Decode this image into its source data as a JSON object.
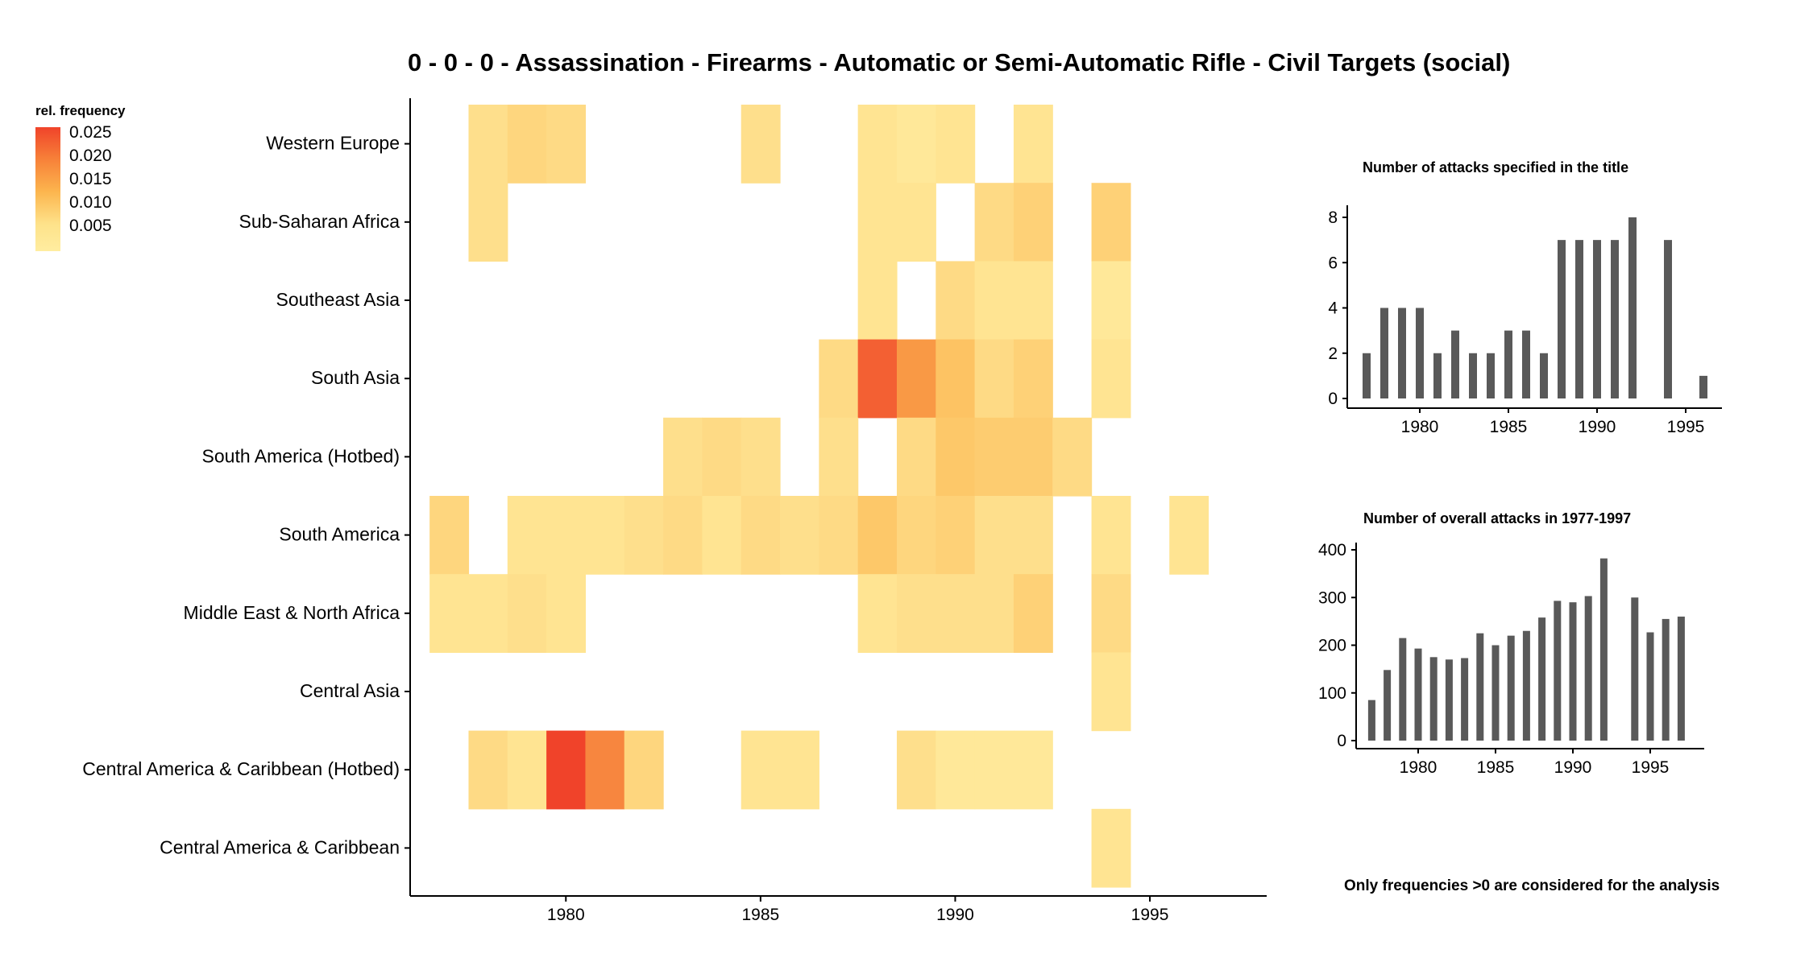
{
  "title": "0 - 0 - 0 - Assassination - Firearms - Automatic or Semi-Automatic Rifle - Civil Targets (social)",
  "legend": {
    "title": "rel. frequency",
    "labels": [
      "0.025",
      "0.020",
      "0.015",
      "0.010",
      "0.005"
    ],
    "colors": {
      "high": "#f0432a",
      "low": "#ffeda0"
    }
  },
  "footnote": "Only frequencies >0 are considered for the analysis",
  "chart_data": [
    {
      "type": "heatmap",
      "title": "0 - 0 - 0 - Assassination - Firearms - Automatic or Semi-Automatic Rifle - Civil Targets (social)",
      "x_ticks": [
        "1980",
        "1985",
        "1990",
        "1995"
      ],
      "xlim": [
        1976,
        1998
      ],
      "y_categories": [
        "Western Europe",
        "Sub-Saharan Africa",
        "Southeast Asia",
        "South Asia",
        "South America (Hotbed)",
        "South America",
        "Middle East & North Africa",
        "Central Asia",
        "Central America & Caribbean (Hotbed)",
        "Central America & Caribbean"
      ],
      "cells": [
        {
          "region": "Western Europe",
          "year": 1978,
          "value": 0.004
        },
        {
          "region": "Western Europe",
          "year": 1979,
          "value": 0.006
        },
        {
          "region": "Western Europe",
          "year": 1980,
          "value": 0.005
        },
        {
          "region": "Western Europe",
          "year": 1985,
          "value": 0.004
        },
        {
          "region": "Western Europe",
          "year": 1988,
          "value": 0.003
        },
        {
          "region": "Western Europe",
          "year": 1989,
          "value": 0.002
        },
        {
          "region": "Western Europe",
          "year": 1990,
          "value": 0.003
        },
        {
          "region": "Western Europe",
          "year": 1992,
          "value": 0.003
        },
        {
          "region": "Sub-Saharan Africa",
          "year": 1978,
          "value": 0.004
        },
        {
          "region": "Sub-Saharan Africa",
          "year": 1988,
          "value": 0.003
        },
        {
          "region": "Sub-Saharan Africa",
          "year": 1989,
          "value": 0.003
        },
        {
          "region": "Sub-Saharan Africa",
          "year": 1991,
          "value": 0.005
        },
        {
          "region": "Sub-Saharan Africa",
          "year": 1992,
          "value": 0.007
        },
        {
          "region": "Sub-Saharan Africa",
          "year": 1994,
          "value": 0.007
        },
        {
          "region": "Southeast Asia",
          "year": 1988,
          "value": 0.003
        },
        {
          "region": "Southeast Asia",
          "year": 1990,
          "value": 0.005
        },
        {
          "region": "Southeast Asia",
          "year": 1991,
          "value": 0.003
        },
        {
          "region": "Southeast Asia",
          "year": 1992,
          "value": 0.003
        },
        {
          "region": "Southeast Asia",
          "year": 1994,
          "value": 0.002
        },
        {
          "region": "South Asia",
          "year": 1987,
          "value": 0.005
        },
        {
          "region": "South Asia",
          "year": 1988,
          "value": 0.022
        },
        {
          "region": "South Asia",
          "year": 1989,
          "value": 0.016
        },
        {
          "region": "South Asia",
          "year": 1990,
          "value": 0.01
        },
        {
          "region": "South Asia",
          "year": 1991,
          "value": 0.005
        },
        {
          "region": "South Asia",
          "year": 1992,
          "value": 0.007
        },
        {
          "region": "South Asia",
          "year": 1994,
          "value": 0.003
        },
        {
          "region": "South America (Hotbed)",
          "year": 1983,
          "value": 0.004
        },
        {
          "region": "South America (Hotbed)",
          "year": 1984,
          "value": 0.005
        },
        {
          "region": "South America (Hotbed)",
          "year": 1985,
          "value": 0.004
        },
        {
          "region": "South America (Hotbed)",
          "year": 1987,
          "value": 0.004
        },
        {
          "region": "South America (Hotbed)",
          "year": 1989,
          "value": 0.005
        },
        {
          "region": "South America (Hotbed)",
          "year": 1990,
          "value": 0.009
        },
        {
          "region": "South America (Hotbed)",
          "year": 1991,
          "value": 0.008
        },
        {
          "region": "South America (Hotbed)",
          "year": 1992,
          "value": 0.008
        },
        {
          "region": "South America (Hotbed)",
          "year": 1993,
          "value": 0.005
        },
        {
          "region": "South America",
          "year": 1977,
          "value": 0.006
        },
        {
          "region": "South America",
          "year": 1979,
          "value": 0.003
        },
        {
          "region": "South America",
          "year": 1980,
          "value": 0.003
        },
        {
          "region": "South America",
          "year": 1981,
          "value": 0.003
        },
        {
          "region": "South America",
          "year": 1982,
          "value": 0.004
        },
        {
          "region": "South America",
          "year": 1983,
          "value": 0.005
        },
        {
          "region": "South America",
          "year": 1984,
          "value": 0.003
        },
        {
          "region": "South America",
          "year": 1985,
          "value": 0.005
        },
        {
          "region": "South America",
          "year": 1986,
          "value": 0.004
        },
        {
          "region": "South America",
          "year": 1987,
          "value": 0.005
        },
        {
          "region": "South America",
          "year": 1988,
          "value": 0.009
        },
        {
          "region": "South America",
          "year": 1989,
          "value": 0.006
        },
        {
          "region": "South America",
          "year": 1990,
          "value": 0.007
        },
        {
          "region": "South America",
          "year": 1991,
          "value": 0.004
        },
        {
          "region": "South America",
          "year": 1992,
          "value": 0.004
        },
        {
          "region": "South America",
          "year": 1994,
          "value": 0.003
        },
        {
          "region": "South America",
          "year": 1996,
          "value": 0.003
        },
        {
          "region": "Middle East & North Africa",
          "year": 1977,
          "value": 0.003
        },
        {
          "region": "Middle East & North Africa",
          "year": 1978,
          "value": 0.003
        },
        {
          "region": "Middle East & North Africa",
          "year": 1979,
          "value": 0.004
        },
        {
          "region": "Middle East & North Africa",
          "year": 1980,
          "value": 0.003
        },
        {
          "region": "Middle East & North Africa",
          "year": 1988,
          "value": 0.003
        },
        {
          "region": "Middle East & North Africa",
          "year": 1989,
          "value": 0.004
        },
        {
          "region": "Middle East & North Africa",
          "year": 1990,
          "value": 0.004
        },
        {
          "region": "Middle East & North Africa",
          "year": 1991,
          "value": 0.004
        },
        {
          "region": "Middle East & North Africa",
          "year": 1992,
          "value": 0.007
        },
        {
          "region": "Middle East & North Africa",
          "year": 1994,
          "value": 0.005
        },
        {
          "region": "Central Asia",
          "year": 1994,
          "value": 0.003
        },
        {
          "region": "Central America & Caribbean (Hotbed)",
          "year": 1978,
          "value": 0.005
        },
        {
          "region": "Central America & Caribbean (Hotbed)",
          "year": 1979,
          "value": 0.003
        },
        {
          "region": "Central America & Caribbean (Hotbed)",
          "year": 1980,
          "value": 0.025
        },
        {
          "region": "Central America & Caribbean (Hotbed)",
          "year": 1981,
          "value": 0.018
        },
        {
          "region": "Central America & Caribbean (Hotbed)",
          "year": 1982,
          "value": 0.006
        },
        {
          "region": "Central America & Caribbean (Hotbed)",
          "year": 1985,
          "value": 0.003
        },
        {
          "region": "Central America & Caribbean (Hotbed)",
          "year": 1986,
          "value": 0.003
        },
        {
          "region": "Central America & Caribbean (Hotbed)",
          "year": 1989,
          "value": 0.004
        },
        {
          "region": "Central America & Caribbean (Hotbed)",
          "year": 1990,
          "value": 0.002
        },
        {
          "region": "Central America & Caribbean (Hotbed)",
          "year": 1991,
          "value": 0.002
        },
        {
          "region": "Central America & Caribbean (Hotbed)",
          "year": 1992,
          "value": 0.002
        },
        {
          "region": "Central America & Caribbean",
          "year": 1994,
          "value": 0.003
        }
      ],
      "color_scale": {
        "min": 0.001,
        "max": 0.025,
        "low": "#ffeda0",
        "mid": "#fcb54e",
        "high": "#f0432a"
      }
    },
    {
      "type": "bar",
      "title": "Number of attacks specified in the title",
      "x": [
        1977,
        1978,
        1979,
        1980,
        1981,
        1982,
        1983,
        1984,
        1985,
        1986,
        1987,
        1988,
        1989,
        1990,
        1991,
        1992,
        1994,
        1996
      ],
      "values": [
        2,
        4,
        4,
        4,
        2,
        3,
        2,
        2,
        3,
        3,
        2,
        7,
        7,
        7,
        7,
        8,
        7,
        1
      ],
      "x_ticks": [
        "1980",
        "1985",
        "1990",
        "1995"
      ],
      "y_ticks": [
        "0",
        "2",
        "4",
        "6",
        "8"
      ],
      "xlim": [
        1976,
        1997
      ],
      "ylim": [
        0,
        8.4
      ],
      "bar_color": "#595959"
    },
    {
      "type": "bar",
      "title": "Number of overall attacks in 1977-1997",
      "x": [
        1977,
        1978,
        1979,
        1980,
        1981,
        1982,
        1983,
        1984,
        1985,
        1986,
        1987,
        1988,
        1989,
        1990,
        1991,
        1992,
        1994,
        1995,
        1996,
        1997
      ],
      "values": [
        85,
        148,
        215,
        193,
        175,
        170,
        173,
        225,
        200,
        220,
        230,
        258,
        293,
        290,
        303,
        382,
        300,
        227,
        255,
        260
      ],
      "x_ticks": [
        "1980",
        "1985",
        "1990",
        "1995"
      ],
      "y_ticks": [
        "0",
        "100",
        "200",
        "300",
        "400"
      ],
      "xlim": [
        1976,
        1998
      ],
      "ylim": [
        0,
        400
      ],
      "bar_color": "#595959"
    }
  ]
}
